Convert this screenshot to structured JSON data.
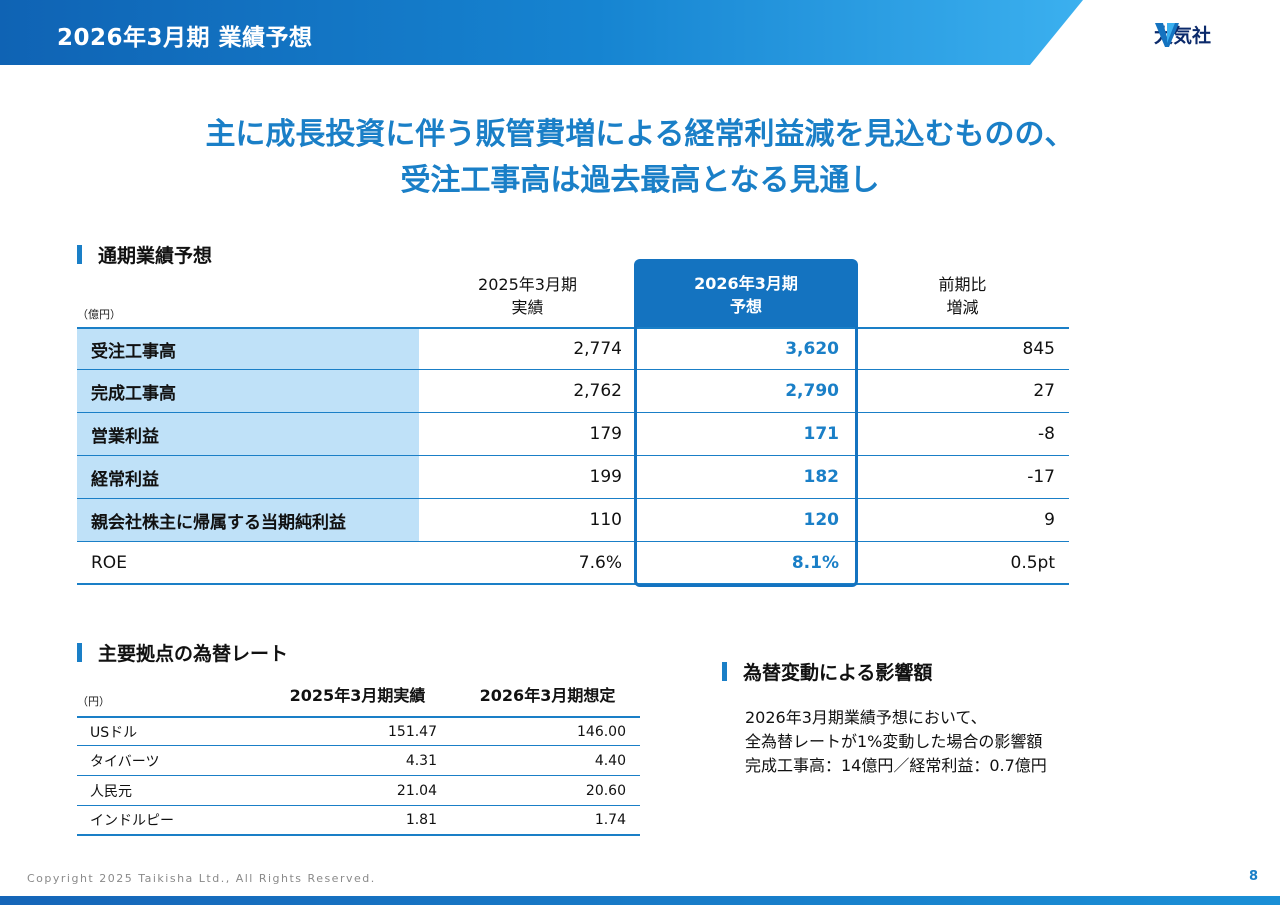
{
  "header": {
    "title": "2026年3月期 業績予想",
    "logo_text": "大気社",
    "colors": {
      "primary": "#1473c0",
      "light": "#3bb0ef"
    }
  },
  "headline": {
    "line1": "主に成長投資に伴う販管費増による経常利益減を見込むものの、",
    "line2": "受注工事高は過去最高となる見通し"
  },
  "forecast": {
    "section_title": "通期業績予想",
    "unit": "（億円）",
    "columns": {
      "prev_line1": "2025年3月期",
      "prev_line2": "実績",
      "next_line1": "2026年3月期",
      "next_line2": "予想",
      "diff_line1": "前期比",
      "diff_line2": "増減"
    },
    "rows": [
      {
        "label": "受注工事高",
        "prev": "2,774",
        "next": "3,620",
        "diff": "845"
      },
      {
        "label": "完成工事高",
        "prev": "2,762",
        "next": "2,790",
        "diff": "27"
      },
      {
        "label": "営業利益",
        "prev": "179",
        "next": "171",
        "diff": "-8"
      },
      {
        "label": "経常利益",
        "prev": "199",
        "next": "182",
        "diff": "-17"
      },
      {
        "label": "親会社株主に帰属する当期純利益",
        "prev": "110",
        "next": "120",
        "diff": "9"
      },
      {
        "label": "ROE",
        "prev": "7.6%",
        "next": "8.1%",
        "diff": "0.5pt"
      }
    ]
  },
  "fx": {
    "section_title": "主要拠点の為替レート",
    "unit": "（円）",
    "col_prev": "2025年3月期実績",
    "col_next": "2026年3月期想定",
    "rows": [
      {
        "name": "USドル",
        "prev": "151.47",
        "next": "146.00"
      },
      {
        "name": "タイバーツ",
        "prev": "4.31",
        "next": "4.40"
      },
      {
        "name": "人民元",
        "prev": "21.04",
        "next": "20.60"
      },
      {
        "name": "インドルピー",
        "prev": "1.81",
        "next": "1.74"
      }
    ]
  },
  "impact": {
    "section_title": "為替変動による影響額",
    "line1": "2026年3月期業績予想において、",
    "line2": "全為替レートが1%変動した場合の影響額",
    "line3": "完成工事高：14億円／経常利益：0.7億円"
  },
  "footer": {
    "copyright": "Copyright  2025 Taikisha Ltd., All Rights Reserved.",
    "page": "8"
  }
}
